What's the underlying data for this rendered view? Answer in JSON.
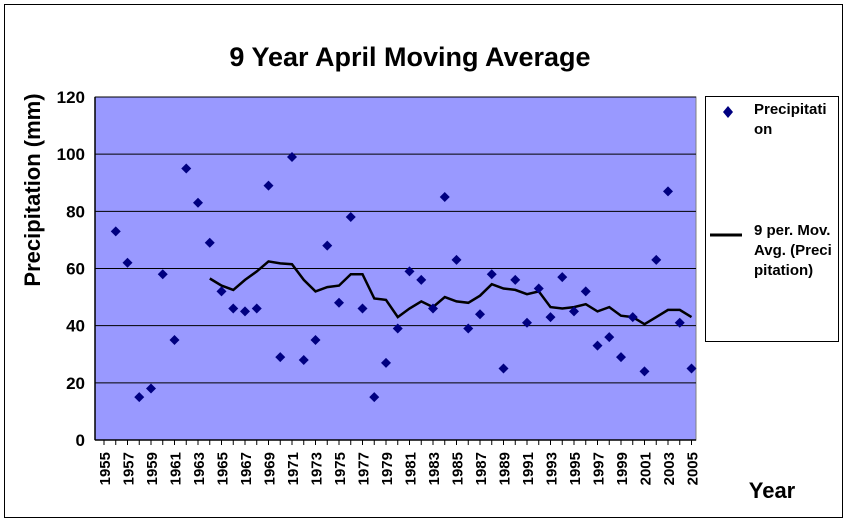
{
  "chart_data": {
    "type": "scatter",
    "title": "9 Year April Moving Average",
    "xlabel": "Year",
    "ylabel": "Precipitation (mm)",
    "ylim": [
      0,
      120
    ],
    "yticks": [
      0,
      20,
      40,
      60,
      80,
      100,
      120
    ],
    "xlim": [
      1955,
      2005
    ],
    "xticks": [
      "1955",
      "1957",
      "1959",
      "1961",
      "1963",
      "1965",
      "1967",
      "1969",
      "1971",
      "1973",
      "1975",
      "1977",
      "1979",
      "1981",
      "1983",
      "1985",
      "1987",
      "1989",
      "1991",
      "1993",
      "1995",
      "1997",
      "1999",
      "2001",
      "2003",
      "2005"
    ],
    "grid": true,
    "legend_position": "right",
    "colors": {
      "plot_bg": "#9999ff",
      "marker": "#000080",
      "line": "#000000"
    },
    "series": [
      {
        "name": "Precipitation",
        "style": "markers",
        "points": [
          [
            1956,
            73
          ],
          [
            1957,
            62
          ],
          [
            1958,
            15
          ],
          [
            1959,
            18
          ],
          [
            1960,
            58
          ],
          [
            1961,
            35
          ],
          [
            1962,
            95
          ],
          [
            1963,
            83
          ],
          [
            1964,
            69
          ],
          [
            1965,
            52
          ],
          [
            1966,
            46
          ],
          [
            1967,
            45
          ],
          [
            1968,
            46
          ],
          [
            1969,
            89
          ],
          [
            1970,
            29
          ],
          [
            1971,
            99
          ],
          [
            1972,
            28
          ],
          [
            1973,
            35
          ],
          [
            1974,
            68
          ],
          [
            1975,
            48
          ],
          [
            1976,
            78
          ],
          [
            1977,
            46
          ],
          [
            1978,
            15
          ],
          [
            1979,
            27
          ],
          [
            1980,
            39
          ],
          [
            1981,
            59
          ],
          [
            1982,
            56
          ],
          [
            1983,
            46
          ],
          [
            1984,
            85
          ],
          [
            1985,
            63
          ],
          [
            1986,
            39
          ],
          [
            1987,
            44
          ],
          [
            1988,
            58
          ],
          [
            1989,
            25
          ],
          [
            1990,
            56
          ],
          [
            1991,
            41
          ],
          [
            1992,
            53
          ],
          [
            1993,
            43
          ],
          [
            1994,
            57
          ],
          [
            1995,
            45
          ],
          [
            1996,
            52
          ],
          [
            1997,
            33
          ],
          [
            1998,
            36
          ],
          [
            1999,
            29
          ],
          [
            2000,
            43
          ],
          [
            2001,
            24
          ],
          [
            2002,
            63
          ],
          [
            2003,
            87
          ],
          [
            2004,
            41
          ],
          [
            2005,
            25
          ]
        ]
      },
      {
        "name": "9 per. Mov. Avg. (Precipitation)",
        "style": "line",
        "points": [
          [
            1964,
            56.5
          ],
          [
            1965,
            54
          ],
          [
            1966,
            52.5
          ],
          [
            1967,
            56
          ],
          [
            1968,
            59
          ],
          [
            1969,
            62.5
          ],
          [
            1970,
            61.8
          ],
          [
            1971,
            61.5
          ],
          [
            1972,
            56
          ],
          [
            1973,
            52
          ],
          [
            1974,
            53.5
          ],
          [
            1975,
            54
          ],
          [
            1976,
            58
          ],
          [
            1977,
            58
          ],
          [
            1978,
            49.5
          ],
          [
            1979,
            49
          ],
          [
            1980,
            43
          ],
          [
            1981,
            46
          ],
          [
            1982,
            48.5
          ],
          [
            1983,
            46.5
          ],
          [
            1984,
            50
          ],
          [
            1985,
            48.5
          ],
          [
            1986,
            48
          ],
          [
            1987,
            50.5
          ],
          [
            1988,
            54.5
          ],
          [
            1989,
            53
          ],
          [
            1990,
            52.5
          ],
          [
            1991,
            51
          ],
          [
            1992,
            52
          ],
          [
            1993,
            46.5
          ],
          [
            1994,
            46
          ],
          [
            1995,
            46.5
          ],
          [
            1996,
            47.5
          ],
          [
            1997,
            45
          ],
          [
            1998,
            46.5
          ],
          [
            1999,
            43.5
          ],
          [
            2000,
            43
          ],
          [
            2001,
            40.5
          ],
          [
            2002,
            43
          ],
          [
            2003,
            45.5
          ],
          [
            2004,
            45.5
          ],
          [
            2005,
            43
          ]
        ]
      }
    ]
  },
  "legend": {
    "marker_label": "Precipitation",
    "line_label": "9 per. Mov. Avg. (Precipitation)"
  }
}
